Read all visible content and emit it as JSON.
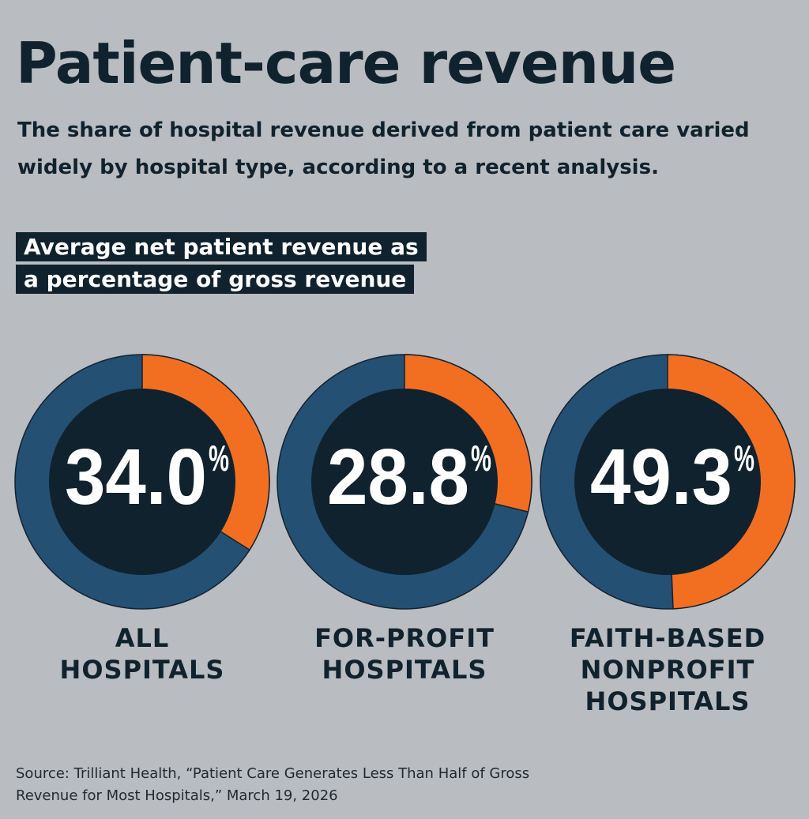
{
  "chart_data": {
    "type": "donut",
    "title": "Patient-care revenue",
    "subtitle": "The share of hospital revenue derived from patient care varied widely by hospital type, according to a recent analysis.",
    "label": "Average net patient revenue as\na percentage of gross revenue",
    "categories": [
      "ALL\nHOSPITALS",
      "FOR-PROFIT\nHOSPITALS",
      "FAITH-BASED\nNONPROFIT\nHOSPITALS"
    ],
    "values": [
      34.0,
      28.8,
      49.3
    ],
    "value_labels": [
      "34.0",
      "28.8",
      "49.3"
    ],
    "unit": "%",
    "color": "#f26f21",
    "rest_color": "#245073",
    "source": "Source: Trilliant Health, “Patient Care Generates Less Than Half of Gross\nRevenue for Most Hospitals,” March 19, 2026"
  }
}
